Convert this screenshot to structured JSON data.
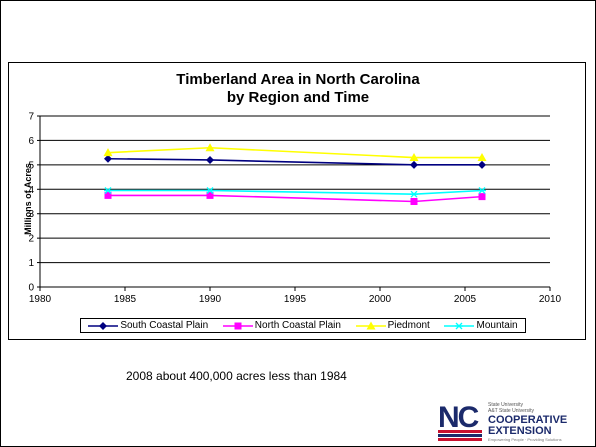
{
  "slide": {
    "note": "2008 about 400,000 acres less than 1984",
    "logo": {
      "mark": "NC",
      "line1": "COOPERATIVE",
      "line2": "EXTENSION",
      "small1": "State University",
      "small2": "A&T State University",
      "tagline": "Empowering People · Providing Solutions",
      "colors": {
        "navy": "#1b2a6b",
        "red": "#c8102e"
      }
    }
  },
  "chart_data": {
    "type": "line",
    "title_line1": "Timberland Area in North Carolina",
    "title_line2": "by Region and Time",
    "ylabel": "Millions of Acres",
    "xlim": [
      1980,
      2010
    ],
    "ylim": [
      0,
      7
    ],
    "xticks": [
      1980,
      1985,
      1990,
      1995,
      2000,
      2005,
      2010
    ],
    "yticks": [
      0,
      1,
      2,
      3,
      4,
      5,
      6,
      7
    ],
    "grid": "horizontal",
    "legend_position": "bottom",
    "series": [
      {
        "name": "South Coastal Plain",
        "color": "#000080",
        "marker": "diamond",
        "x": [
          1984,
          1990,
          2002,
          2006
        ],
        "y": [
          5.25,
          5.2,
          5.0,
          5.0
        ]
      },
      {
        "name": "North Coastal Plain",
        "color": "#ff00ff",
        "marker": "square",
        "x": [
          1984,
          1990,
          2002,
          2006
        ],
        "y": [
          3.75,
          3.75,
          3.5,
          3.7
        ]
      },
      {
        "name": "Piedmont",
        "color": "#ffff00",
        "marker": "triangle",
        "x": [
          1984,
          1990,
          2002,
          2006
        ],
        "y": [
          5.5,
          5.7,
          5.3,
          5.3
        ]
      },
      {
        "name": "Mountain",
        "color": "#00ffff",
        "marker": "asterisk",
        "x": [
          1984,
          1990,
          2002,
          2006
        ],
        "y": [
          3.95,
          3.95,
          3.8,
          3.95
        ]
      }
    ]
  }
}
